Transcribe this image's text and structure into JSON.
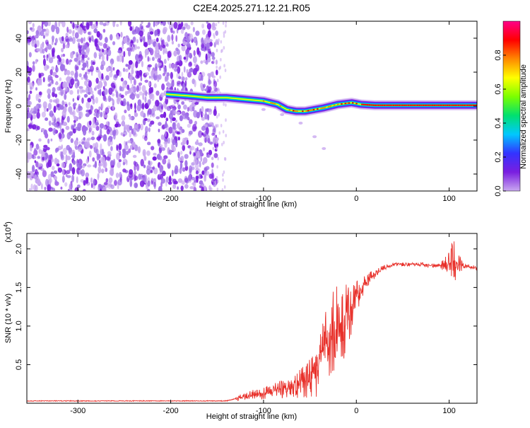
{
  "title": "C2E4.2025.271.12.21.R05",
  "chart_data": [
    {
      "type": "heatmap",
      "name": "spectrogram",
      "xlabel": "Height of straight line (km)",
      "ylabel": "Frequency (Hz)",
      "xlim": [
        -355,
        130
      ],
      "ylim": [
        -50,
        50
      ],
      "xticks": [
        -300,
        -200,
        -100,
        0,
        100
      ],
      "xtick_labels": [
        "-300",
        "-200",
        "-100",
        "0",
        "100"
      ],
      "yticks": [
        -40,
        -20,
        0,
        20,
        40
      ],
      "ytick_labels": [
        "-40",
        "-20",
        "0",
        "20",
        "40"
      ],
      "colorbar": {
        "label": "Normalized spectral amplitude",
        "range": [
          0,
          1
        ],
        "ticks": [
          0.0,
          0.2,
          0.4,
          0.6,
          0.8
        ],
        "tick_labels": [
          "0.0",
          "0.2",
          "0.4",
          "0.6",
          "0.8"
        ],
        "colors": [
          "#ffffff",
          "#c9a8f0",
          "#7a1ee0",
          "#3333ff",
          "#00c8ff",
          "#00e070",
          "#7aff00",
          "#ffff00",
          "#ff8800",
          "#ff0000",
          "#ff0088"
        ]
      },
      "noise_region": {
        "x_range": [
          -355,
          -150
        ],
        "y_range": [
          -50,
          50
        ],
        "color": "#7a1ee0"
      },
      "sparse_noise": {
        "x_range": [
          -155,
          -140
        ],
        "color": "#c9a8f0"
      },
      "signal_track": [
        {
          "x": -205,
          "y": 7
        },
        {
          "x": -180,
          "y": 6
        },
        {
          "x": -160,
          "y": 5
        },
        {
          "x": -140,
          "y": 5
        },
        {
          "x": -120,
          "y": 4
        },
        {
          "x": -100,
          "y": 3
        },
        {
          "x": -85,
          "y": 1
        },
        {
          "x": -75,
          "y": -2
        },
        {
          "x": -65,
          "y": -3
        },
        {
          "x": -55,
          "y": -3
        },
        {
          "x": -45,
          "y": -2
        },
        {
          "x": -35,
          "y": -1
        },
        {
          "x": -20,
          "y": 1
        },
        {
          "x": -5,
          "y": 2
        },
        {
          "x": 5,
          "y": 1
        },
        {
          "x": 20,
          "y": 0.5
        },
        {
          "x": 60,
          "y": 0.5
        },
        {
          "x": 100,
          "y": 0.5
        },
        {
          "x": 130,
          "y": 0.5
        }
      ],
      "faint_branch": [
        {
          "x": -100,
          "y": -2
        },
        {
          "x": -80,
          "y": -5
        },
        {
          "x": -60,
          "y": -10
        },
        {
          "x": -45,
          "y": -18
        },
        {
          "x": -35,
          "y": -25
        }
      ]
    },
    {
      "type": "line",
      "name": "snr",
      "xlabel": "Height of straight line (km)",
      "ylabel": "SNR (10 * v/v)",
      "multiplier_label": "(x10",
      "multiplier_exp": "4",
      "xlim": [
        -355,
        130
      ],
      "ylim": [
        0,
        2.2
      ],
      "xticks": [
        -300,
        -200,
        -100,
        0,
        100
      ],
      "xtick_labels": [
        "-300",
        "-200",
        "-100",
        "0",
        "100"
      ],
      "yticks": [
        0.5,
        1.0,
        1.5,
        2.0
      ],
      "ytick_labels": [
        "0.5",
        "1.0",
        "1.5",
        "2.0"
      ],
      "line_color": "#e8302a",
      "series": [
        {
          "name": "SNR",
          "x": [
            -355,
            -300,
            -250,
            -200,
            -160,
            -140,
            -130,
            -120,
            -110,
            -100,
            -90,
            -80,
            -70,
            -60,
            -50,
            -45,
            -40,
            -35,
            -30,
            -25,
            -20,
            -15,
            -10,
            -5,
            0,
            10,
            20,
            30,
            40,
            50,
            60,
            70,
            80,
            90,
            100,
            105,
            110,
            120,
            130
          ],
          "values": [
            0.03,
            0.03,
            0.03,
            0.03,
            0.03,
            0.03,
            0.06,
            0.09,
            0.11,
            0.13,
            0.16,
            0.18,
            0.21,
            0.25,
            0.32,
            0.38,
            0.5,
            0.65,
            0.8,
            0.92,
            0.95,
            1.0,
            1.15,
            1.2,
            1.38,
            1.55,
            1.68,
            1.76,
            1.8,
            1.8,
            1.8,
            1.8,
            1.78,
            1.78,
            1.8,
            1.85,
            1.79,
            1.77,
            1.75
          ]
        }
      ],
      "noise_envelope": [
        {
          "x": -130,
          "amp": 0.04
        },
        {
          "x": -100,
          "amp": 0.08
        },
        {
          "x": -70,
          "amp": 0.14
        },
        {
          "x": -50,
          "amp": 0.25
        },
        {
          "x": -35,
          "amp": 0.45
        },
        {
          "x": -20,
          "amp": 0.65
        },
        {
          "x": -10,
          "amp": 0.45
        },
        {
          "x": 0,
          "amp": 0.2
        },
        {
          "x": 20,
          "amp": 0.06
        },
        {
          "x": 40,
          "amp": 0.02
        },
        {
          "x": 90,
          "amp": 0.03
        },
        {
          "x": 105,
          "amp": 0.3
        },
        {
          "x": 115,
          "amp": 0.03
        }
      ]
    }
  ]
}
